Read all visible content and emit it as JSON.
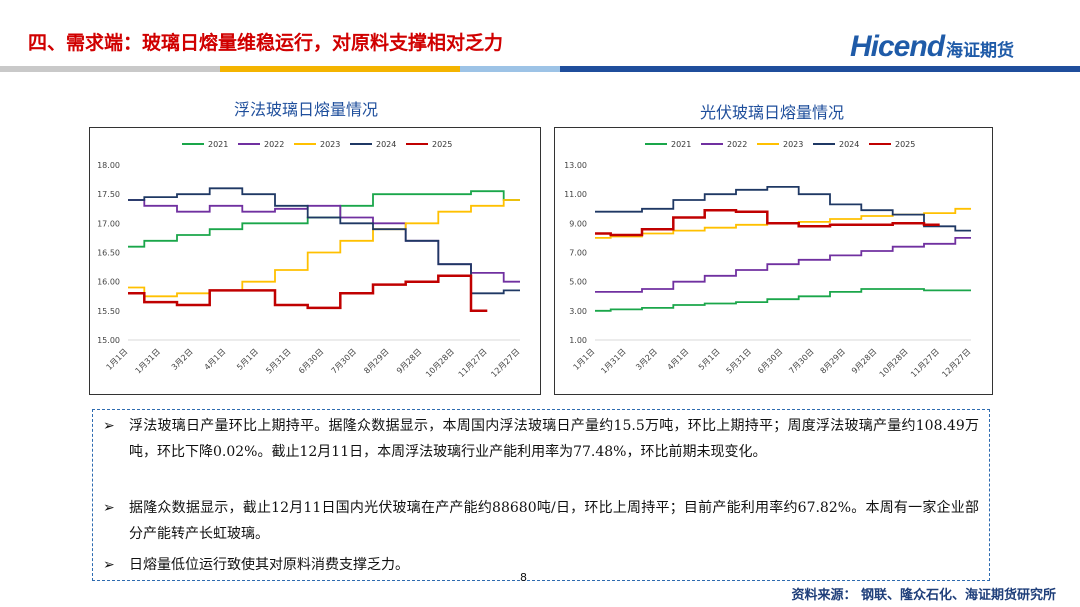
{
  "header": {
    "title": "四、需求端：玻璃日熔量维稳运行，对原料支撑相对乏力",
    "logo_en": "Hicend",
    "logo_cn": "海证期货"
  },
  "colors": {
    "c2021": "#1aa64a",
    "c2022": "#7030a0",
    "c2023": "#ffc000",
    "c2024": "#1f3864",
    "c2025": "#c00000"
  },
  "chart_data": [
    {
      "type": "line",
      "title": "浮法玻璃日熔量情况",
      "legend": [
        "2021",
        "2022",
        "2023",
        "2024",
        "2025"
      ],
      "xlabel": "",
      "ylabel": "",
      "categories": [
        "1月1日",
        "1月31日",
        "3月2日",
        "4月1日",
        "5月1日",
        "5月31日",
        "6月30日",
        "7月30日",
        "8月29日",
        "9月28日",
        "10月28日",
        "11月27日",
        "12月27日"
      ],
      "yticks": [
        "18.00",
        "17.50",
        "17.00",
        "16.50",
        "16.00",
        "15.50",
        "15.00"
      ],
      "ylim": [
        15.0,
        18.0
      ],
      "series": [
        {
          "name": "2021",
          "values": [
            16.6,
            16.7,
            16.8,
            16.9,
            17.0,
            17.0,
            17.1,
            17.3,
            17.5,
            17.5,
            17.5,
            17.55,
            17.4
          ]
        },
        {
          "name": "2022",
          "values": [
            17.4,
            17.3,
            17.2,
            17.3,
            17.2,
            17.25,
            17.3,
            17.1,
            17.0,
            16.7,
            16.3,
            16.15,
            16.0
          ]
        },
        {
          "name": "2023",
          "values": [
            15.9,
            15.75,
            15.8,
            15.85,
            16.0,
            16.2,
            16.5,
            16.7,
            16.9,
            17.0,
            17.2,
            17.3,
            17.4
          ]
        },
        {
          "name": "2024",
          "values": [
            17.4,
            17.45,
            17.5,
            17.6,
            17.5,
            17.3,
            17.1,
            17.0,
            16.9,
            16.7,
            16.3,
            15.8,
            15.85
          ]
        },
        {
          "name": "2025",
          "values": [
            15.8,
            15.65,
            15.6,
            15.85,
            15.85,
            15.6,
            15.55,
            15.8,
            15.95,
            16.0,
            16.1,
            15.5,
            null
          ]
        }
      ]
    },
    {
      "type": "line",
      "title": "光伏玻璃日熔量情况",
      "legend": [
        "2021",
        "2022",
        "2023",
        "2024",
        "2025"
      ],
      "xlabel": "",
      "ylabel": "",
      "categories": [
        "1月1日",
        "1月31日",
        "3月2日",
        "4月1日",
        "5月1日",
        "5月31日",
        "6月30日",
        "7月30日",
        "8月29日",
        "9月28日",
        "10月28日",
        "11月27日",
        "12月27日"
      ],
      "yticks": [
        "13.00",
        "11.00",
        "9.00",
        "7.00",
        "5.00",
        "3.00",
        "1.00"
      ],
      "ylim": [
        1.0,
        13.0
      ],
      "series": [
        {
          "name": "2021",
          "values": [
            3.0,
            3.1,
            3.2,
            3.4,
            3.5,
            3.6,
            3.8,
            4.0,
            4.3,
            4.5,
            4.5,
            4.4,
            4.4
          ]
        },
        {
          "name": "2022",
          "values": [
            4.3,
            4.3,
            4.5,
            5.0,
            5.4,
            5.8,
            6.2,
            6.5,
            6.8,
            7.1,
            7.4,
            7.6,
            8.0
          ]
        },
        {
          "name": "2023",
          "values": [
            8.0,
            8.1,
            8.3,
            8.5,
            8.7,
            8.9,
            9.0,
            9.1,
            9.3,
            9.5,
            9.6,
            9.7,
            10.0
          ]
        },
        {
          "name": "2024",
          "values": [
            9.8,
            9.8,
            10.0,
            10.6,
            11.0,
            11.3,
            11.5,
            11.0,
            10.3,
            9.9,
            9.6,
            8.8,
            8.5
          ]
        },
        {
          "name": "2025",
          "values": [
            8.3,
            8.2,
            8.6,
            9.4,
            9.9,
            9.8,
            9.0,
            8.8,
            8.9,
            8.9,
            9.0,
            8.9,
            null
          ]
        }
      ]
    }
  ],
  "bullets": [
    "浮法玻璃日产量环比上期持平。据隆众数据显示，本周国内浮法玻璃日产量约15.5万吨，环比上期持平；周度浮法玻璃产量约108.49万吨，环比下降0.02%。截止12月11日，本周浮法玻璃行业产能利用率为77.48%，环比前期未现变化。",
    "据隆众数据显示，截止12月11日国内光伏玻璃在产产能约88680吨/日，环比上周持平；目前产能利用率约67.82%。本周有一家企业部分产能转产长虹玻璃。",
    "日熔量低位运行致使其对原料消费支撑乏力。"
  ],
  "bullet_arrow": "➢",
  "footer": {
    "page": "8",
    "source": "资料来源：  钢联、隆众石化、海证期货研究所"
  }
}
